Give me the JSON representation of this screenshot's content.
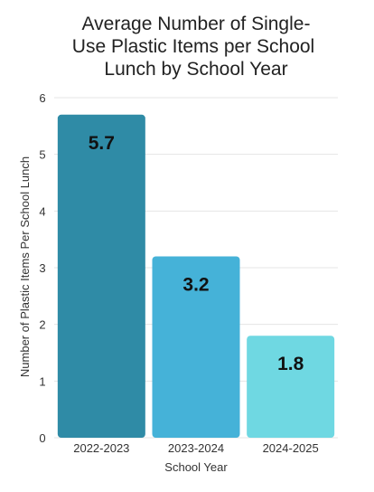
{
  "chart_data": {
    "type": "bar",
    "title_lines": [
      "Average Number of Single-",
      "Use Plastic Items per School",
      "Lunch by School Year"
    ],
    "xlabel": "School Year",
    "ylabel": "Number of Plastic Items Per School Lunch",
    "categories": [
      "2022-2023",
      "2023-2024",
      "2024-2025"
    ],
    "values": [
      5.7,
      3.2,
      1.8
    ],
    "data_labels": [
      "5.7",
      "3.2",
      "1.8"
    ],
    "bar_colors": [
      "#2f8ba6",
      "#45b2d8",
      "#6fd8e2"
    ],
    "ylim": [
      0,
      6
    ],
    "yticks": [
      "0",
      "1",
      "2",
      "3",
      "4",
      "5",
      "6"
    ],
    "grid": true,
    "legend": "none"
  }
}
